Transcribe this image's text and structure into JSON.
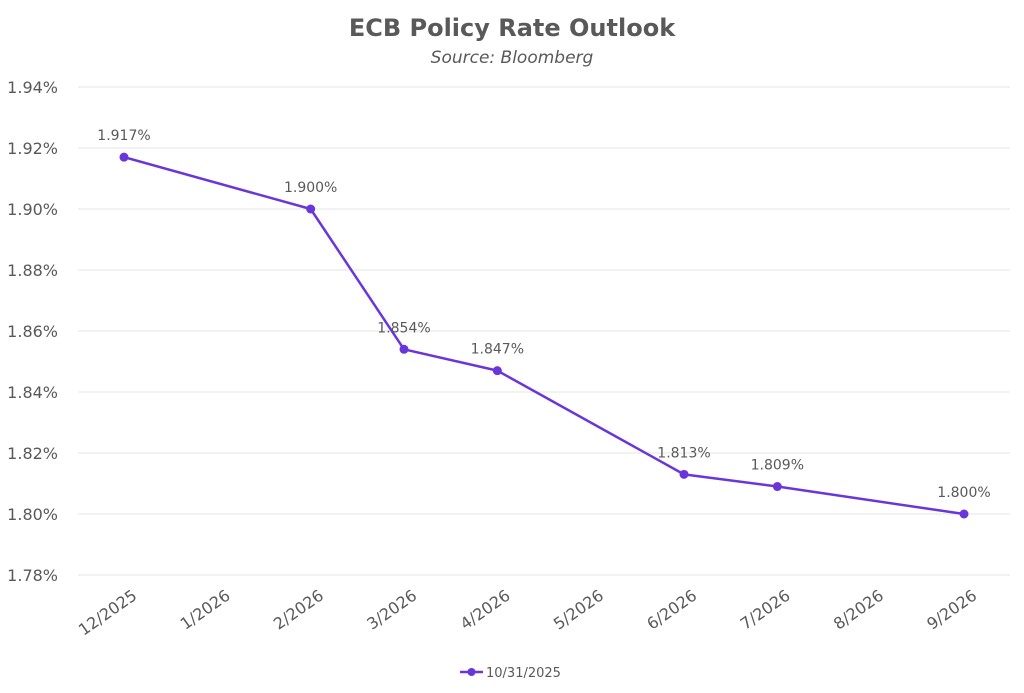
{
  "chart_data": {
    "type": "line",
    "title": "ECB Policy Rate Outlook",
    "subtitle": "Source: Bloomberg",
    "xlabel": "",
    "ylabel": "",
    "categories": [
      "12/2025",
      "1/2026",
      "2/2026",
      "3/2026",
      "4/2026",
      "5/2026",
      "6/2026",
      "7/2026",
      "8/2026",
      "9/2026"
    ],
    "ylim": [
      1.78,
      1.94
    ],
    "yticks": [
      1.78,
      1.8,
      1.82,
      1.84,
      1.86,
      1.88,
      1.9,
      1.92,
      1.94
    ],
    "ytick_labels": [
      "1.78%",
      "1.80%",
      "1.82%",
      "1.84%",
      "1.86%",
      "1.88%",
      "1.90%",
      "1.92%",
      "1.94%"
    ],
    "grid": true,
    "legend_position": "bottom",
    "series": [
      {
        "name": "10/31/2025",
        "color": "#6a35d9",
        "points": [
          {
            "category": "12/2025",
            "value": 1.917,
            "label": "1.917%"
          },
          {
            "category": "2/2026",
            "value": 1.9,
            "label": "1.900%"
          },
          {
            "category": "3/2026",
            "value": 1.854,
            "label": "1.854%"
          },
          {
            "category": "4/2026",
            "value": 1.847,
            "label": "1.847%"
          },
          {
            "category": "6/2026",
            "value": 1.813,
            "label": "1.813%"
          },
          {
            "category": "7/2026",
            "value": 1.809,
            "label": "1.809%"
          },
          {
            "category": "9/2026",
            "value": 1.8,
            "label": "1.800%"
          }
        ]
      }
    ]
  }
}
